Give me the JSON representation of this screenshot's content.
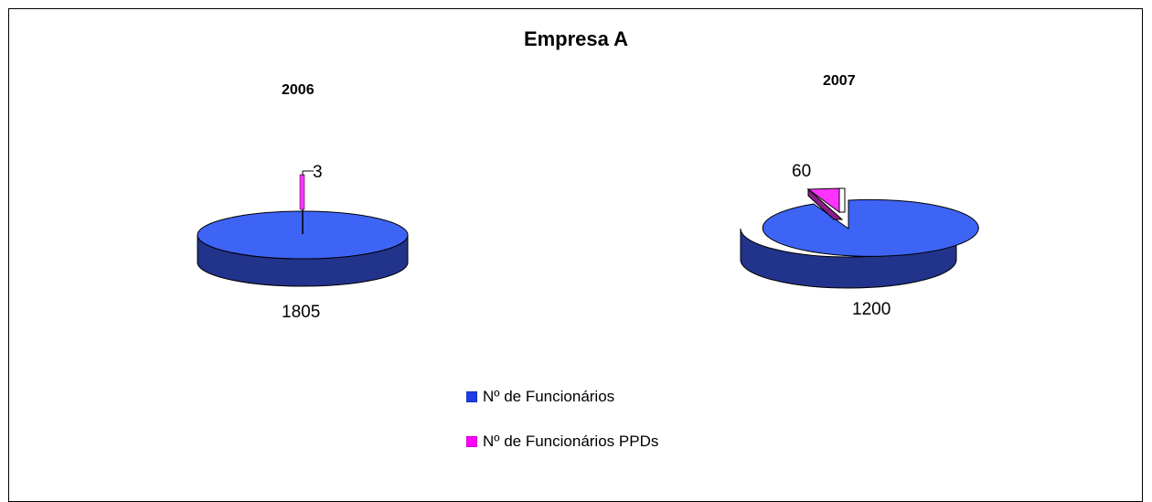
{
  "chart_data": {
    "type": "pie",
    "title": "Empresa A",
    "series_names": [
      "Nº de Funcionários",
      "Nº de Funcionários PPDs"
    ],
    "colors": {
      "funcionarios": "#3e64f6",
      "ppds": "#ff33ff",
      "funcionarios_side": "#22338c",
      "ppds_side": "#8c1d8c"
    },
    "pies": [
      {
        "label": "2006",
        "values": [
          1805,
          3
        ]
      },
      {
        "label": "2007",
        "values": [
          1200,
          60
        ]
      }
    ],
    "legend_position": "bottom-center",
    "style": "3d-exploded"
  }
}
